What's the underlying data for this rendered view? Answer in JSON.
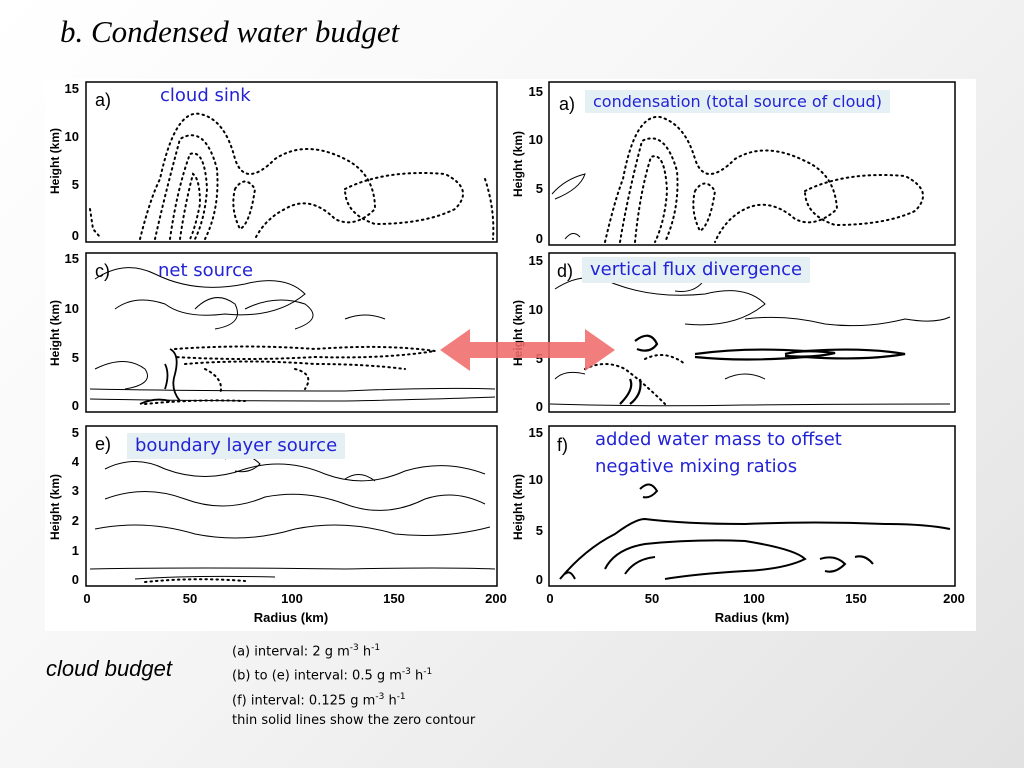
{
  "title": "b. Condensed water budget",
  "panels": [
    {
      "letter": "a)",
      "overlay": "cloud sink",
      "ylabel": "Height (km)",
      "yticks": [
        "0",
        "5",
        "10",
        "15"
      ]
    },
    {
      "letter": "a)",
      "overlay": "condensation (total source of cloud)",
      "ylabel": "Height (km)",
      "yticks": [
        "0",
        "5",
        "10",
        "15"
      ]
    },
    {
      "letter": "c)",
      "overlay": "net source",
      "ylabel": "Height (km)",
      "yticks": [
        "0",
        "5",
        "10",
        "15"
      ]
    },
    {
      "letter": "d)",
      "overlay": "vertical flux divergence",
      "ylabel": "Height (km)",
      "yticks": [
        "0",
        "5",
        "10",
        "15"
      ]
    },
    {
      "letter": "e)",
      "overlay": "boundary layer source",
      "ylabel": "Height (km)",
      "yticks": [
        "0",
        "1",
        "2",
        "3",
        "4",
        "5"
      ]
    },
    {
      "letter": "f)",
      "overlay": "added water mass to offset negative mixing ratios",
      "ylabel": "Height (km)",
      "yticks": [
        "0",
        "5",
        "10",
        "15"
      ]
    }
  ],
  "xaxis": {
    "label": "Radius (km)",
    "ticks": [
      "0",
      "50",
      "100",
      "150",
      "200"
    ]
  },
  "side_label": "cloud budget",
  "notes": [
    {
      "text": "(a) interval:  2 g m",
      "sup1": "-3",
      "mid": " h",
      "sup2": "-1"
    },
    {
      "text": "(b) to (e) interval:  0.5 g m",
      "sup1": "-3",
      "mid": " h",
      "sup2": "-1"
    },
    {
      "text": "(f) interval:  0.125 g m",
      "sup1": "-3",
      "mid": " h",
      "sup2": "-1"
    },
    {
      "text": "thin solid lines show the zero contour",
      "sup1": "",
      "mid": "",
      "sup2": ""
    }
  ],
  "colors": {
    "annotation_text": "#2323d6",
    "arrow": "#f06b6b",
    "highlight_box": "#e4f0f4"
  },
  "chart_data": {
    "type": "contour",
    "description_axes": {
      "x": "Radius (km)",
      "y": "Height (km)"
    },
    "xlim": [
      0,
      200
    ],
    "panels": [
      {
        "id": "a-left",
        "ylim": [
          0,
          15
        ]
      },
      {
        "id": "a-right",
        "ylim": [
          0,
          15
        ]
      },
      {
        "id": "c",
        "ylim": [
          0,
          15
        ]
      },
      {
        "id": "d",
        "ylim": [
          0,
          15
        ]
      },
      {
        "id": "e",
        "ylim": [
          0,
          5
        ]
      },
      {
        "id": "f",
        "ylim": [
          0,
          15
        ]
      }
    ]
  }
}
